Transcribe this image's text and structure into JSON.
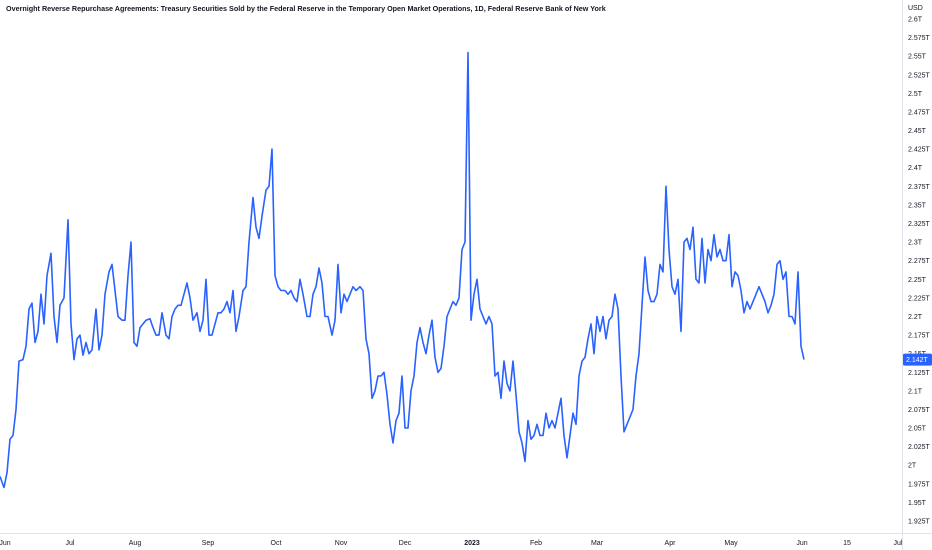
{
  "header": {
    "title": "Overnight Reverse Repurchase Agreements: Treasury Securities Sold by the Federal Reserve in the Temporary Open Market Operations, 1D, Federal Reserve Bank of New York",
    "unit": "USD"
  },
  "colors": {
    "line": "#2962ff",
    "badge_bg": "#2962ff",
    "badge_text": "#ffffff",
    "axis_line": "#e0e3eb",
    "text": "#131722"
  },
  "chart_data": {
    "type": "line",
    "title": "Overnight Reverse Repurchase Agreements: Treasury Securities Sold by the Federal Reserve in the Temporary Open Market Operations, 1D, Federal Reserve Bank of New York",
    "unit": "USD",
    "grid": false,
    "xlabel": "",
    "ylabel": "",
    "y_axis_side": "right",
    "ylim": [
      1.91,
      2.61
    ],
    "y_ticks": [
      "2.6T",
      "2.575T",
      "2.55T",
      "2.525T",
      "2.5T",
      "2.475T",
      "2.45T",
      "2.425T",
      "2.4T",
      "2.375T",
      "2.35T",
      "2.325T",
      "2.3T",
      "2.275T",
      "2.25T",
      "2.225T",
      "2.2T",
      "2.175T",
      "2.15T",
      "2.125T",
      "2.1T",
      "2.075T",
      "2.05T",
      "2.025T",
      "2T",
      "1.975T",
      "1.95T",
      "1.925T"
    ],
    "y_tick_values": [
      2.6,
      2.575,
      2.55,
      2.525,
      2.5,
      2.475,
      2.45,
      2.425,
      2.4,
      2.375,
      2.35,
      2.325,
      2.3,
      2.275,
      2.25,
      2.225,
      2.2,
      2.175,
      2.15,
      2.125,
      2.1,
      2.075,
      2.05,
      2.025,
      2.0,
      1.975,
      1.95,
      1.925
    ],
    "xlim": [
      0,
      902
    ],
    "x_ticks": [
      {
        "label": "Jun",
        "x": 5,
        "bold": false
      },
      {
        "label": "Jul",
        "x": 70,
        "bold": false
      },
      {
        "label": "Aug",
        "x": 135,
        "bold": false
      },
      {
        "label": "Sep",
        "x": 208,
        "bold": false
      },
      {
        "label": "Oct",
        "x": 276,
        "bold": false
      },
      {
        "label": "Nov",
        "x": 341,
        "bold": false
      },
      {
        "label": "Dec",
        "x": 405,
        "bold": false
      },
      {
        "label": "2023",
        "x": 472,
        "bold": true
      },
      {
        "label": "Feb",
        "x": 536,
        "bold": false
      },
      {
        "label": "Mar",
        "x": 597,
        "bold": false
      },
      {
        "label": "Apr",
        "x": 670,
        "bold": false
      },
      {
        "label": "May",
        "x": 731,
        "bold": false
      },
      {
        "label": "Jun",
        "x": 802,
        "bold": false
      },
      {
        "label": "15",
        "x": 847,
        "bold": false
      },
      {
        "label": "Jul",
        "x": 898,
        "bold": false
      }
    ],
    "last_value_label": "2.142T",
    "last_value": 2.142,
    "series": [
      {
        "values": [
          [
            0,
            1.985
          ],
          [
            4,
            1.97
          ],
          [
            7,
            1.99
          ],
          [
            10,
            2.035
          ],
          [
            13,
            2.04
          ],
          [
            16,
            2.075
          ],
          [
            19,
            2.14
          ],
          [
            23,
            2.142
          ],
          [
            26,
            2.16
          ],
          [
            29,
            2.21
          ],
          [
            32,
            2.218
          ],
          [
            35,
            2.165
          ],
          [
            38,
            2.18
          ],
          [
            41,
            2.23
          ],
          [
            44,
            2.19
          ],
          [
            47,
            2.255
          ],
          [
            51,
            2.285
          ],
          [
            54,
            2.2
          ],
          [
            57,
            2.165
          ],
          [
            60,
            2.215
          ],
          [
            64,
            2.225
          ],
          [
            68,
            2.33
          ],
          [
            71,
            2.19
          ],
          [
            74,
            2.142
          ],
          [
            77,
            2.17
          ],
          [
            80,
            2.175
          ],
          [
            83,
            2.148
          ],
          [
            86,
            2.165
          ],
          [
            89,
            2.15
          ],
          [
            92,
            2.155
          ],
          [
            96,
            2.21
          ],
          [
            99,
            2.155
          ],
          [
            102,
            2.175
          ],
          [
            105,
            2.23
          ],
          [
            109,
            2.26
          ],
          [
            112,
            2.27
          ],
          [
            115,
            2.235
          ],
          [
            118,
            2.2
          ],
          [
            122,
            2.195
          ],
          [
            125,
            2.195
          ],
          [
            128,
            2.255
          ],
          [
            131,
            2.3
          ],
          [
            134,
            2.165
          ],
          [
            137,
            2.16
          ],
          [
            140,
            2.185
          ],
          [
            143,
            2.19
          ],
          [
            146,
            2.195
          ],
          [
            150,
            2.197
          ],
          [
            153,
            2.185
          ],
          [
            156,
            2.175
          ],
          [
            159,
            2.175
          ],
          [
            162,
            2.205
          ],
          [
            166,
            2.175
          ],
          [
            169,
            2.17
          ],
          [
            172,
            2.2
          ],
          [
            175,
            2.21
          ],
          [
            178,
            2.215
          ],
          [
            181,
            2.215
          ],
          [
            184,
            2.23
          ],
          [
            187,
            2.245
          ],
          [
            190,
            2.225
          ],
          [
            193,
            2.195
          ],
          [
            197,
            2.205
          ],
          [
            200,
            2.18
          ],
          [
            203,
            2.195
          ],
          [
            206,
            2.25
          ],
          [
            209,
            2.175
          ],
          [
            212,
            2.175
          ],
          [
            215,
            2.19
          ],
          [
            218,
            2.205
          ],
          [
            221,
            2.205
          ],
          [
            224,
            2.21
          ],
          [
            227,
            2.22
          ],
          [
            230,
            2.205
          ],
          [
            233,
            2.235
          ],
          [
            236,
            2.18
          ],
          [
            239,
            2.2
          ],
          [
            243,
            2.235
          ],
          [
            246,
            2.24
          ],
          [
            249,
            2.3
          ],
          [
            253,
            2.36
          ],
          [
            256,
            2.32
          ],
          [
            259,
            2.305
          ],
          [
            262,
            2.335
          ],
          [
            266,
            2.37
          ],
          [
            269,
            2.375
          ],
          [
            272,
            2.425
          ],
          [
            275,
            2.255
          ],
          [
            278,
            2.24
          ],
          [
            281,
            2.235
          ],
          [
            285,
            2.235
          ],
          [
            288,
            2.23
          ],
          [
            291,
            2.235
          ],
          [
            294,
            2.225
          ],
          [
            297,
            2.22
          ],
          [
            300,
            2.25
          ],
          [
            303,
            2.23
          ],
          [
            307,
            2.2
          ],
          [
            310,
            2.2
          ],
          [
            313,
            2.23
          ],
          [
            316,
            2.24
          ],
          [
            319,
            2.265
          ],
          [
            322,
            2.245
          ],
          [
            325,
            2.2
          ],
          [
            328,
            2.2
          ],
          [
            332,
            2.175
          ],
          [
            335,
            2.195
          ],
          [
            338,
            2.27
          ],
          [
            341,
            2.205
          ],
          [
            344,
            2.23
          ],
          [
            347,
            2.22
          ],
          [
            350,
            2.23
          ],
          [
            353,
            2.24
          ],
          [
            356,
            2.235
          ],
          [
            360,
            2.24
          ],
          [
            363,
            2.235
          ],
          [
            366,
            2.17
          ],
          [
            369,
            2.15
          ],
          [
            372,
            2.09
          ],
          [
            375,
            2.1
          ],
          [
            378,
            2.12
          ],
          [
            381,
            2.12
          ],
          [
            384,
            2.125
          ],
          [
            387,
            2.095
          ],
          [
            390,
            2.055
          ],
          [
            393,
            2.03
          ],
          [
            396,
            2.06
          ],
          [
            399,
            2.07
          ],
          [
            402,
            2.12
          ],
          [
            405,
            2.05
          ],
          [
            408,
            2.05
          ],
          [
            411,
            2.1
          ],
          [
            414,
            2.12
          ],
          [
            417,
            2.165
          ],
          [
            420,
            2.185
          ],
          [
            423,
            2.165
          ],
          [
            426,
            2.15
          ],
          [
            429,
            2.175
          ],
          [
            432,
            2.195
          ],
          [
            435,
            2.145
          ],
          [
            438,
            2.125
          ],
          [
            441,
            2.13
          ],
          [
            444,
            2.16
          ],
          [
            447,
            2.2
          ],
          [
            450,
            2.21
          ],
          [
            453,
            2.22
          ],
          [
            456,
            2.215
          ],
          [
            459,
            2.225
          ],
          [
            462,
            2.29
          ],
          [
            465,
            2.3
          ],
          [
            468,
            2.555
          ],
          [
            471,
            2.195
          ],
          [
            474,
            2.23
          ],
          [
            477,
            2.25
          ],
          [
            480,
            2.21
          ],
          [
            483,
            2.2
          ],
          [
            486,
            2.19
          ],
          [
            489,
            2.2
          ],
          [
            492,
            2.19
          ],
          [
            495,
            2.12
          ],
          [
            498,
            2.125
          ],
          [
            501,
            2.09
          ],
          [
            504,
            2.14
          ],
          [
            507,
            2.11
          ],
          [
            510,
            2.1
          ],
          [
            513,
            2.14
          ],
          [
            516,
            2.095
          ],
          [
            519,
            2.045
          ],
          [
            522,
            2.03
          ],
          [
            525,
            2.005
          ],
          [
            528,
            2.06
          ],
          [
            531,
            2.035
          ],
          [
            534,
            2.04
          ],
          [
            537,
            2.055
          ],
          [
            540,
            2.04
          ],
          [
            543,
            2.04
          ],
          [
            546,
            2.07
          ],
          [
            549,
            2.05
          ],
          [
            552,
            2.06
          ],
          [
            555,
            2.05
          ],
          [
            558,
            2.07
          ],
          [
            561,
            2.09
          ],
          [
            564,
            2.04
          ],
          [
            567,
            2.01
          ],
          [
            570,
            2.04
          ],
          [
            573,
            2.07
          ],
          [
            576,
            2.055
          ],
          [
            579,
            2.12
          ],
          [
            582,
            2.14
          ],
          [
            585,
            2.145
          ],
          [
            588,
            2.17
          ],
          [
            591,
            2.19
          ],
          [
            594,
            2.15
          ],
          [
            597,
            2.2
          ],
          [
            600,
            2.18
          ],
          [
            603,
            2.2
          ],
          [
            606,
            2.17
          ],
          [
            609,
            2.195
          ],
          [
            612,
            2.2
          ],
          [
            615,
            2.23
          ],
          [
            618,
            2.21
          ],
          [
            621,
            2.12
          ],
          [
            624,
            2.045
          ],
          [
            627,
            2.055
          ],
          [
            630,
            2.065
          ],
          [
            633,
            2.075
          ],
          [
            636,
            2.12
          ],
          [
            639,
            2.15
          ],
          [
            642,
            2.215
          ],
          [
            645,
            2.28
          ],
          [
            648,
            2.235
          ],
          [
            651,
            2.22
          ],
          [
            654,
            2.22
          ],
          [
            657,
            2.23
          ],
          [
            660,
            2.27
          ],
          [
            663,
            2.26
          ],
          [
            666,
            2.375
          ],
          [
            669,
            2.29
          ],
          [
            672,
            2.24
          ],
          [
            675,
            2.23
          ],
          [
            678,
            2.25
          ],
          [
            681,
            2.18
          ],
          [
            684,
            2.3
          ],
          [
            687,
            2.305
          ],
          [
            690,
            2.29
          ],
          [
            693,
            2.32
          ],
          [
            696,
            2.25
          ],
          [
            699,
            2.245
          ],
          [
            702,
            2.305
          ],
          [
            705,
            2.245
          ],
          [
            708,
            2.29
          ],
          [
            711,
            2.275
          ],
          [
            714,
            2.31
          ],
          [
            717,
            2.28
          ],
          [
            720,
            2.29
          ],
          [
            723,
            2.275
          ],
          [
            726,
            2.275
          ],
          [
            729,
            2.31
          ],
          [
            732,
            2.24
          ],
          [
            735,
            2.26
          ],
          [
            738,
            2.255
          ],
          [
            741,
            2.235
          ],
          [
            744,
            2.205
          ],
          [
            747,
            2.22
          ],
          [
            750,
            2.21
          ],
          [
            753,
            2.22
          ],
          [
            756,
            2.23
          ],
          [
            759,
            2.24
          ],
          [
            762,
            2.23
          ],
          [
            765,
            2.22
          ],
          [
            768,
            2.205
          ],
          [
            771,
            2.215
          ],
          [
            774,
            2.23
          ],
          [
            777,
            2.27
          ],
          [
            780,
            2.275
          ],
          [
            783,
            2.25
          ],
          [
            786,
            2.26
          ],
          [
            789,
            2.2
          ],
          [
            792,
            2.2
          ],
          [
            795,
            2.19
          ],
          [
            798,
            2.26
          ],
          [
            801,
            2.16
          ],
          [
            804,
            2.142
          ]
        ]
      }
    ]
  }
}
